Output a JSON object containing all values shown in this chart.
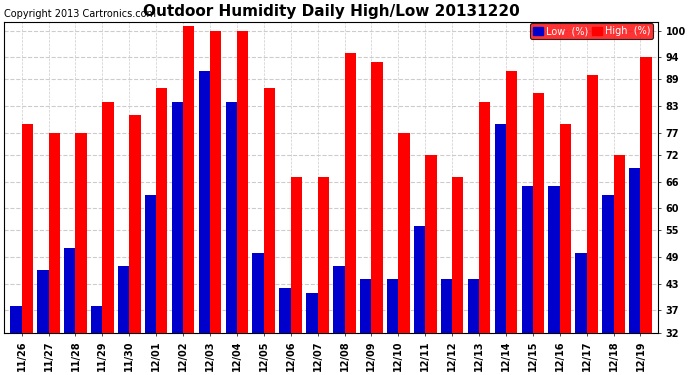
{
  "title": "Outdoor Humidity Daily High/Low 20131220",
  "copyright": "Copyright 2013 Cartronics.com",
  "categories": [
    "11/26",
    "11/27",
    "11/28",
    "11/29",
    "11/30",
    "12/01",
    "12/02",
    "12/03",
    "12/04",
    "12/05",
    "12/06",
    "12/07",
    "12/08",
    "12/09",
    "12/10",
    "12/11",
    "12/12",
    "12/13",
    "12/14",
    "12/15",
    "12/16",
    "12/17",
    "12/18",
    "12/19"
  ],
  "high": [
    79,
    77,
    77,
    84,
    81,
    87,
    101,
    100,
    100,
    87,
    67,
    67,
    95,
    93,
    77,
    72,
    67,
    84,
    91,
    86,
    79,
    90,
    72,
    94
  ],
  "low": [
    38,
    46,
    51,
    38,
    47,
    63,
    84,
    91,
    84,
    50,
    42,
    41,
    47,
    44,
    44,
    56,
    44,
    44,
    79,
    65,
    65,
    50,
    63,
    69
  ],
  "high_color": "#ff0000",
  "low_color": "#0000cc",
  "background_color": "#ffffff",
  "plot_bg_color": "#ffffff",
  "grid_color": "#cccccc",
  "ymin": 32,
  "ymax": 102,
  "yticks": [
    32,
    37,
    43,
    49,
    55,
    60,
    66,
    72,
    77,
    83,
    89,
    94,
    100
  ],
  "bar_width": 0.42,
  "figsize": [
    6.9,
    3.75
  ],
  "dpi": 100,
  "title_fontsize": 11,
  "tick_fontsize": 7,
  "copyright_fontsize": 7
}
